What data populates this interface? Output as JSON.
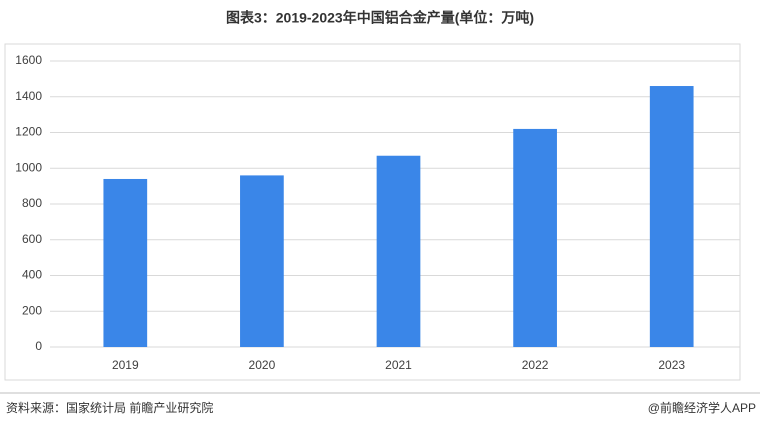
{
  "chart_data": {
    "type": "bar",
    "title": "图表3：2019-2023年中国铝合金产量(单位：万吨)",
    "categories": [
      "2019",
      "2020",
      "2021",
      "2022",
      "2023"
    ],
    "values": [
      940,
      960,
      1070,
      1220,
      1460
    ],
    "color": "#3a86e8",
    "ylim": [
      0,
      1600
    ],
    "yticks": [
      0,
      200,
      400,
      600,
      800,
      1000,
      1200,
      1400,
      1600
    ],
    "grid": true
  },
  "footer": {
    "source": "资料来源：国家统计局 前瞻产业研究院",
    "credit": "@前瞻经济学人APP"
  }
}
